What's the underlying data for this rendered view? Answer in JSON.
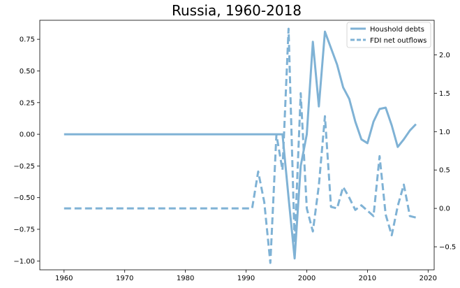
{
  "chart_data": {
    "type": "line",
    "title": "Russia, 1960-2018",
    "xlabel": "",
    "ylabel_left": "",
    "ylabel_right": "",
    "xlim": [
      1956,
      2021
    ],
    "ylim_left": [
      -1.07,
      0.9
    ],
    "ylim_right": [
      -0.8,
      2.45
    ],
    "x_ticks": [
      1960,
      1970,
      1980,
      1990,
      2000,
      2010,
      2020
    ],
    "y_left_ticks": [
      -1.0,
      -0.75,
      -0.5,
      -0.25,
      0.0,
      0.25,
      0.5,
      0.75
    ],
    "y_left_tick_labels": [
      "−1.00",
      "−0.75",
      "−0.50",
      "−0.25",
      "0.00",
      "0.25",
      "0.50",
      "0.75"
    ],
    "y_right_ticks": [
      -0.5,
      0.0,
      0.5,
      1.0,
      1.5,
      2.0
    ],
    "y_right_tick_labels": [
      "−0.5",
      "0.0",
      "0.5",
      "1.0",
      "1.5",
      "2.0"
    ],
    "grid": false,
    "legend_position": "top-right",
    "series": [
      {
        "name": "Houshold debts",
        "axis": "left",
        "style": "solid",
        "color": "#7fb2d5",
        "x": [
          1960,
          1965,
          1970,
          1975,
          1980,
          1985,
          1990,
          1995,
          1996,
          1997,
          1998,
          1999,
          2000,
          2001,
          2002,
          2003,
          2004,
          2005,
          2006,
          2007,
          2008,
          2009,
          2010,
          2011,
          2012,
          2013,
          2014,
          2015,
          2016,
          2017,
          2018
        ],
        "values": [
          0.0,
          0.0,
          0.0,
          0.0,
          0.0,
          0.0,
          0.0,
          0.0,
          0.0,
          -0.5,
          -0.98,
          -0.25,
          0.0,
          0.73,
          0.22,
          0.81,
          0.68,
          0.55,
          0.37,
          0.28,
          0.1,
          -0.04,
          -0.07,
          0.1,
          0.2,
          0.21,
          0.07,
          -0.1,
          -0.04,
          0.03,
          0.08
        ]
      },
      {
        "name": "FDI net outflows",
        "axis": "right",
        "style": "dashed",
        "color": "#7fb2d5",
        "x": [
          1960,
          1965,
          1970,
          1975,
          1980,
          1985,
          1990,
          1991,
          1992,
          1993,
          1994,
          1995,
          1996,
          1997,
          1998,
          1999,
          2000,
          2001,
          2002,
          2003,
          2004,
          2005,
          2006,
          2007,
          2008,
          2009,
          2010,
          2011,
          2012,
          2013,
          2014,
          2015,
          2016,
          2017,
          2018
        ],
        "values": [
          0.0,
          0.0,
          0.0,
          0.0,
          0.0,
          0.0,
          0.0,
          0.0,
          0.48,
          0.08,
          -0.71,
          0.96,
          0.5,
          2.34,
          -0.45,
          1.5,
          0.0,
          -0.3,
          0.3,
          1.2,
          0.02,
          0.0,
          0.28,
          0.14,
          -0.02,
          0.04,
          -0.03,
          -0.1,
          0.68,
          -0.08,
          -0.35,
          0.03,
          0.31,
          -0.1,
          -0.12
        ]
      }
    ]
  }
}
